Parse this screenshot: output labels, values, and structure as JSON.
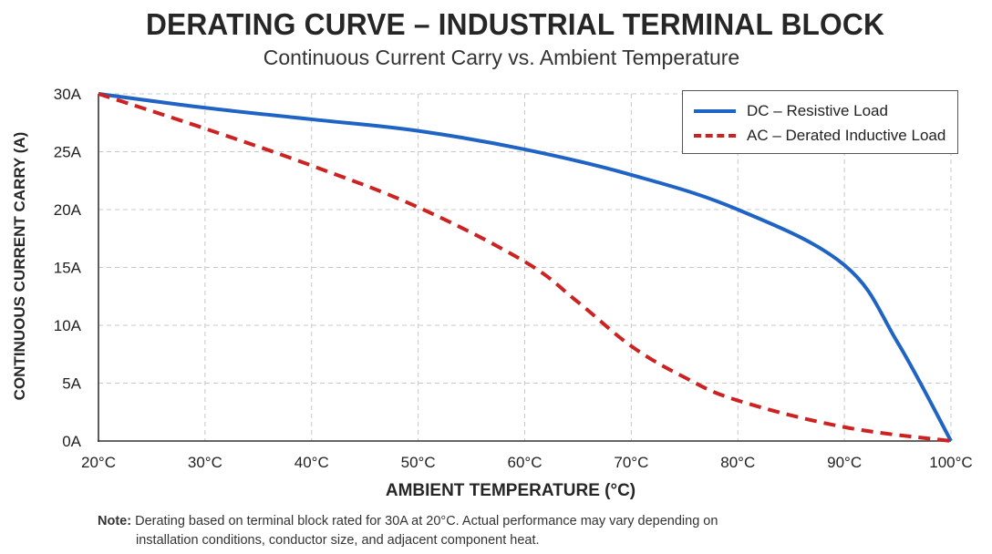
{
  "title": "DERATING CURVE – INDUSTRIAL TERMINAL BLOCK",
  "subtitle": "Continuous Current Carry vs. Ambient Temperature",
  "note": {
    "label": "Note:",
    "line1": "Derating based on terminal block rated for 30A at 20°C.  Actual performance may vary depending on",
    "line2": "installation conditions, conductor size, and adjacent component heat."
  },
  "chart_data": {
    "type": "line",
    "title": "DERATING CURVE – INDUSTRIAL TERMINAL BLOCK",
    "subtitle": "Continuous Current Carry vs. Ambient Temperature",
    "xlabel": "AMBIENT TEMPERATURE (°C)",
    "ylabel": "CONTINUOUS CURRENT CARRY (A)",
    "xlim": [
      20,
      100
    ],
    "ylim": [
      0,
      30
    ],
    "x_ticks": [
      20,
      30,
      40,
      50,
      60,
      70,
      80,
      90,
      100
    ],
    "x_tick_labels": [
      "20°C",
      "30°C",
      "40°C",
      "50°C",
      "60°C",
      "70°C",
      "80°C",
      "90°C",
      "100°C"
    ],
    "y_ticks": [
      0,
      5,
      10,
      15,
      20,
      25,
      30
    ],
    "y_tick_labels": [
      "0A",
      "5A",
      "10A",
      "15A",
      "20A",
      "25A",
      "30A"
    ],
    "grid": true,
    "legend_position": "top-right",
    "series": [
      {
        "name": "DC – Resistive Load",
        "color": "#1f64c4",
        "style": "solid",
        "x": [
          20,
          30,
          40,
          50,
          60,
          70,
          80,
          90,
          95,
          100
        ],
        "y": [
          30,
          28.8,
          27.8,
          26.8,
          25.2,
          23.0,
          20.0,
          15.2,
          8.5,
          0
        ]
      },
      {
        "name": "AC – Derated Inductive Load",
        "color": "#cc2222",
        "style": "dashed",
        "x": [
          20,
          30,
          40,
          50,
          60,
          65,
          70,
          75,
          80,
          90,
          100
        ],
        "y": [
          30,
          27.0,
          23.8,
          20.2,
          15.5,
          12.0,
          8.2,
          5.5,
          3.5,
          1.2,
          0
        ]
      }
    ]
  }
}
